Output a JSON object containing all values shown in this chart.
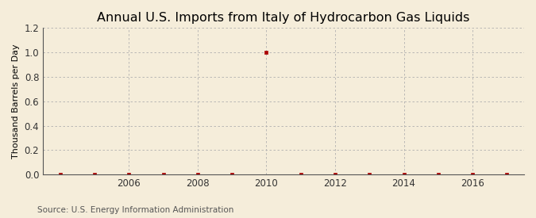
{
  "title": "Annual U.S. Imports from Italy of Hydrocarbon Gas Liquids",
  "ylabel": "Thousand Barrels per Day",
  "source": "Source: U.S. Energy Information Administration",
  "years": [
    2004,
    2005,
    2006,
    2007,
    2008,
    2009,
    2010,
    2011,
    2012,
    2013,
    2014,
    2015,
    2016,
    2017
  ],
  "values": [
    0.0,
    0.0,
    0.0,
    0.0,
    0.0,
    0.0,
    1.0,
    0.0,
    0.0,
    0.0,
    0.0,
    0.0,
    0.0,
    0.0
  ],
  "xlim": [
    2003.5,
    2017.5
  ],
  "ylim": [
    0.0,
    1.2
  ],
  "yticks": [
    0.0,
    0.2,
    0.4,
    0.6,
    0.8,
    1.0,
    1.2
  ],
  "xticks": [
    2006,
    2008,
    2010,
    2012,
    2014,
    2016
  ],
  "marker_color": "#aa0000",
  "background_color": "#f5edda",
  "plot_bg_color": "#f5edda",
  "grid_color": "#b0b0b0",
  "title_fontsize": 11.5,
  "label_fontsize": 8,
  "tick_fontsize": 8.5,
  "source_fontsize": 7.5
}
